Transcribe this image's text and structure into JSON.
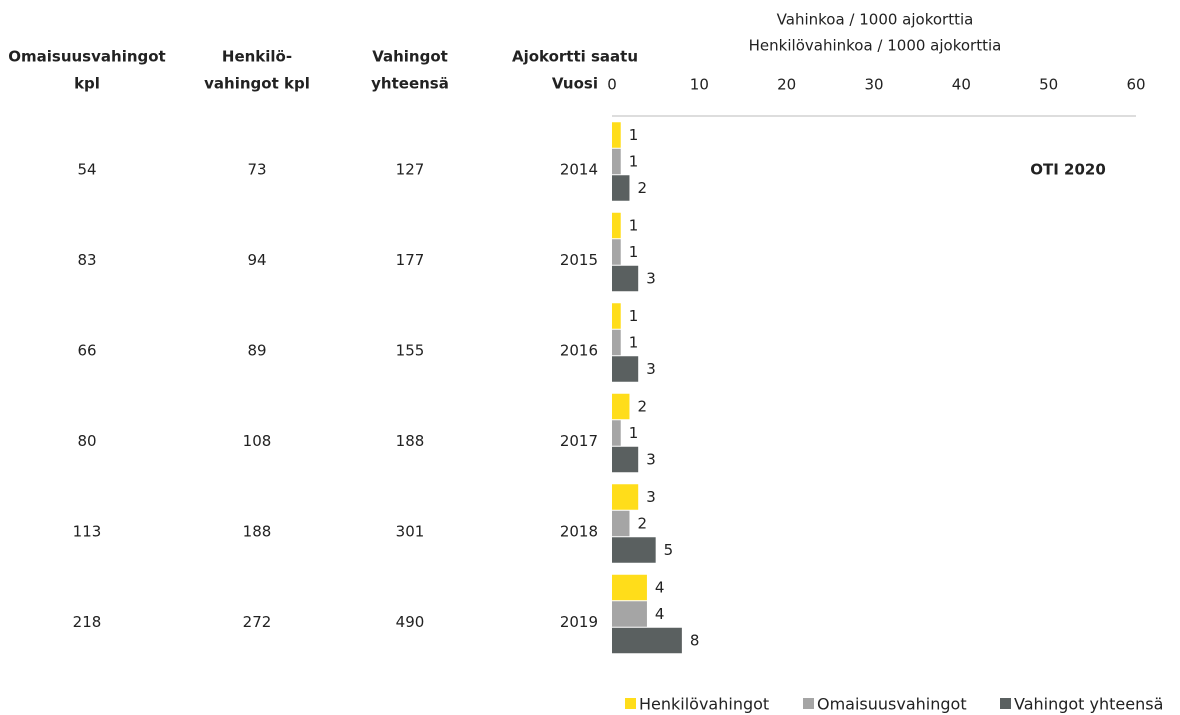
{
  "table": {
    "headers": [
      [
        "Omaisuusvahingot",
        "kpl"
      ],
      [
        "Henkilö-",
        "vahingot kpl"
      ],
      [
        "Vahingot",
        "yhteensä"
      ]
    ],
    "rows": [
      [
        54,
        73,
        127
      ],
      [
        83,
        94,
        177
      ],
      [
        66,
        89,
        155
      ],
      [
        80,
        108,
        188
      ],
      [
        113,
        188,
        301
      ],
      [
        218,
        272,
        490
      ]
    ]
  },
  "chart_data": {
    "type": "barh",
    "x_title": [
      "Vahinkoa / 1000 ajokorttia",
      "Henkilövahinkoa / 1000 ajokorttia"
    ],
    "y_title": [
      "Ajokortti saatu",
      "Vuosi"
    ],
    "annotation": "OTI 2020",
    "categories": [
      "2014",
      "2015",
      "2016",
      "2017",
      "2018",
      "2019"
    ],
    "series": [
      {
        "name": "Henkilövahingot",
        "color": "#ffdd1a",
        "values": [
          1,
          1,
          1,
          2,
          3,
          4
        ]
      },
      {
        "name": "Omaisuusvahingot",
        "color": "#a5a5a5",
        "values": [
          1,
          1,
          1,
          1,
          2,
          4
        ]
      },
      {
        "name": "Vahingot yhteensä",
        "color": "#5a6060",
        "values": [
          2,
          3,
          3,
          3,
          5,
          8
        ]
      }
    ],
    "xlim": [
      0,
      60
    ],
    "xticks": [
      0,
      10,
      20,
      30,
      40,
      50,
      60
    ],
    "legend": "bottom-right"
  }
}
